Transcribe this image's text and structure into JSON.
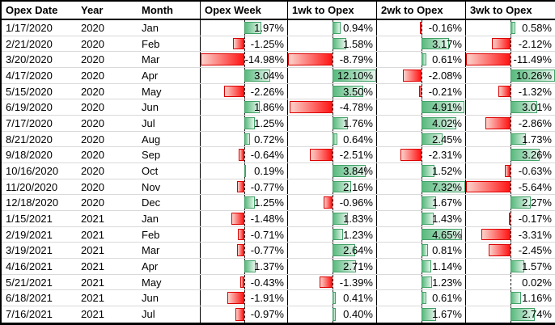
{
  "table": {
    "columns": [
      {
        "key": "date",
        "label": "Opex Date",
        "type": "text"
      },
      {
        "key": "year",
        "label": "Year",
        "type": "text"
      },
      {
        "key": "month",
        "label": "Month",
        "type": "text"
      },
      {
        "key": "opex_week",
        "label": "Opex Week",
        "type": "databar"
      },
      {
        "key": "wk1",
        "label": "1wk to Opex",
        "type": "databar"
      },
      {
        "key": "wk2",
        "label": "2wk to Opex",
        "type": "databar"
      },
      {
        "key": "wk3",
        "label": "3wk to Opex",
        "type": "databar"
      }
    ],
    "bar_scale_max_abs_percent": 5,
    "rows": [
      {
        "date": "1/17/2020",
        "year": "2020",
        "month": "Jan",
        "opex_week": "1.97%",
        "wk1": "0.94%",
        "wk2": "-0.16%",
        "wk3": "0.58%"
      },
      {
        "date": "2/21/2020",
        "year": "2020",
        "month": "Feb",
        "opex_week": "-1.25%",
        "wk1": "1.58%",
        "wk2": "3.17%",
        "wk3": "-2.12%"
      },
      {
        "date": "3/20/2020",
        "year": "2020",
        "month": "Mar",
        "opex_week": "-14.98%",
        "wk1": "-8.79%",
        "wk2": "0.61%",
        "wk3": "-11.49%"
      },
      {
        "date": "4/17/2020",
        "year": "2020",
        "month": "Apr",
        "opex_week": "3.04%",
        "wk1": "12.10%",
        "wk2": "-2.08%",
        "wk3": "10.26%"
      },
      {
        "date": "5/15/2020",
        "year": "2020",
        "month": "May",
        "opex_week": "-2.26%",
        "wk1": "3.50%",
        "wk2": "-0.21%",
        "wk3": "-1.32%"
      },
      {
        "date": "6/19/2020",
        "year": "2020",
        "month": "Jun",
        "opex_week": "1.86%",
        "wk1": "-4.78%",
        "wk2": "4.91%",
        "wk3": "3.01%"
      },
      {
        "date": "7/17/2020",
        "year": "2020",
        "month": "Jul",
        "opex_week": "1.25%",
        "wk1": "1.76%",
        "wk2": "4.02%",
        "wk3": "-2.86%"
      },
      {
        "date": "8/21/2020",
        "year": "2020",
        "month": "Aug",
        "opex_week": "0.72%",
        "wk1": "0.64%",
        "wk2": "2.45%",
        "wk3": "1.73%"
      },
      {
        "date": "9/18/2020",
        "year": "2020",
        "month": "Sep",
        "opex_week": "-0.64%",
        "wk1": "-2.51%",
        "wk2": "-2.31%",
        "wk3": "3.26%"
      },
      {
        "date": "10/16/2020",
        "year": "2020",
        "month": "Oct",
        "opex_week": "0.19%",
        "wk1": "3.84%",
        "wk2": "1.52%",
        "wk3": "-0.63%"
      },
      {
        "date": "11/20/2020",
        "year": "2020",
        "month": "Nov",
        "opex_week": "-0.77%",
        "wk1": "2.16%",
        "wk2": "7.32%",
        "wk3": "-5.64%"
      },
      {
        "date": "12/18/2020",
        "year": "2020",
        "month": "Dec",
        "opex_week": "1.25%",
        "wk1": "-0.96%",
        "wk2": "1.67%",
        "wk3": "2.27%"
      },
      {
        "date": "1/15/2021",
        "year": "2021",
        "month": "Jan",
        "opex_week": "-1.48%",
        "wk1": "1.83%",
        "wk2": "1.43%",
        "wk3": "-0.17%"
      },
      {
        "date": "2/19/2021",
        "year": "2021",
        "month": "Feb",
        "opex_week": "-0.71%",
        "wk1": "1.23%",
        "wk2": "4.65%",
        "wk3": "-3.31%"
      },
      {
        "date": "3/19/2021",
        "year": "2021",
        "month": "Mar",
        "opex_week": "-0.77%",
        "wk1": "2.64%",
        "wk2": "0.81%",
        "wk3": "-2.45%"
      },
      {
        "date": "4/16/2021",
        "year": "2021",
        "month": "Apr",
        "opex_week": "1.37%",
        "wk1": "2.71%",
        "wk2": "1.14%",
        "wk3": "1.57%"
      },
      {
        "date": "5/21/2021",
        "year": "2021",
        "month": "May",
        "opex_week": "-0.43%",
        "wk1": "-1.39%",
        "wk2": "1.23%",
        "wk3": "0.02%"
      },
      {
        "date": "6/18/2021",
        "year": "2021",
        "month": "Jun",
        "opex_week": "-1.91%",
        "wk1": "0.41%",
        "wk2": "0.61%",
        "wk3": "1.16%"
      },
      {
        "date": "7/16/2021",
        "year": "2021",
        "month": "Jul",
        "opex_week": "-0.97%",
        "wk1": "0.40%",
        "wk2": "1.67%",
        "wk3": "2.74%"
      }
    ]
  },
  "colors": {
    "positive_fill_solid": "#59ba7e",
    "positive_fill_light": "#e6f5ec",
    "positive_border": "#41a166",
    "negative_fill_solid": "#ff1414",
    "negative_fill_light": "#fcd3cc",
    "negative_border": "#dc0000",
    "axis": "#1a1a1a",
    "gridline": "#d9d9d9",
    "frame": "#000000",
    "text": "#000000"
  }
}
